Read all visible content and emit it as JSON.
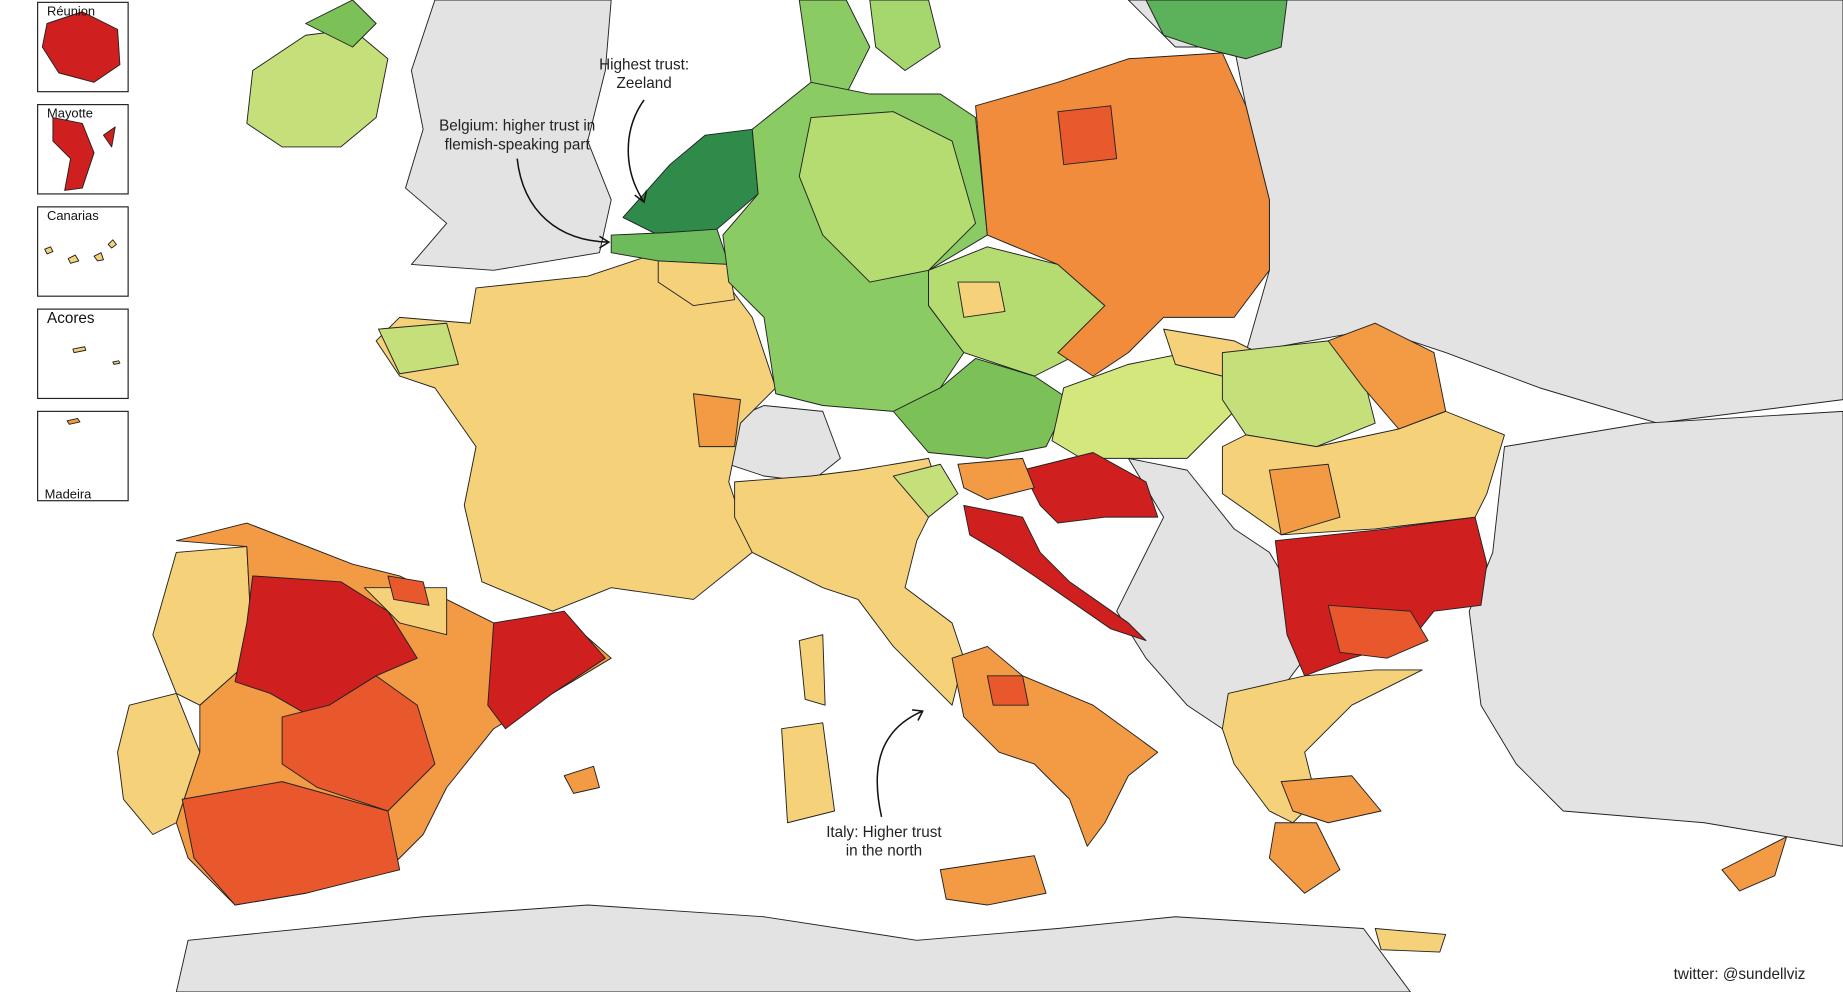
{
  "insets": [
    {
      "label": "Réunion"
    },
    {
      "label": "Mayotte"
    },
    {
      "label": "Canarias"
    },
    {
      "label": "Acores"
    },
    {
      "label": "Madeira"
    }
  ],
  "annotations": [
    {
      "lines": [
        "Highest trust:",
        "Zeeland"
      ]
    },
    {
      "lines": [
        "Belgium: higher trust in",
        "flemish-speaking part"
      ]
    },
    {
      "lines": [
        "Italy: Higher trust",
        "in the north"
      ]
    }
  ],
  "credit": "twitter: @sundellviz"
}
